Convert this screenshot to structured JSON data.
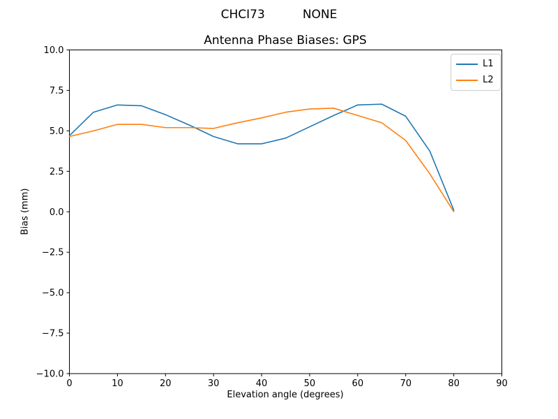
{
  "header": {
    "suptitle": "CHCI73          NONE",
    "chart_title": "Antenna Phase Biases: GPS"
  },
  "chart_data": {
    "type": "line",
    "title": "Antenna Phase Biases: GPS",
    "suptitle": "CHCI73          NONE",
    "xlabel": "Elevation angle (degrees)",
    "ylabel": "Bias (mm)",
    "xlim": [
      0,
      90
    ],
    "ylim": [
      -10,
      10
    ],
    "grid": false,
    "legend_position": "upper right",
    "xticks": [
      0,
      10,
      20,
      30,
      40,
      50,
      60,
      70,
      80,
      90
    ],
    "xtick_labels": [
      "0",
      "10",
      "20",
      "30",
      "40",
      "50",
      "60",
      "70",
      "80",
      "90"
    ],
    "yticks": [
      -10,
      -7.5,
      -5,
      -2.5,
      0,
      2.5,
      5,
      7.5,
      10
    ],
    "ytick_labels": [
      "−10.0",
      "−7.5",
      "−5.0",
      "−2.5",
      "0.0",
      "2.5",
      "5.0",
      "7.5",
      "10.0"
    ],
    "x": [
      0,
      5,
      10,
      15,
      20,
      25,
      30,
      35,
      40,
      45,
      50,
      55,
      60,
      65,
      70,
      75,
      80
    ],
    "series": [
      {
        "name": "L1",
        "color": "#1f77b4",
        "values": [
          4.7,
          6.15,
          6.6,
          6.55,
          6.0,
          5.35,
          4.65,
          4.2,
          4.2,
          4.55,
          5.25,
          5.95,
          6.6,
          6.65,
          5.9,
          3.75,
          0.1
        ]
      },
      {
        "name": "L2",
        "color": "#ff7f0e",
        "values": [
          4.65,
          5.0,
          5.4,
          5.4,
          5.2,
          5.2,
          5.15,
          5.5,
          5.8,
          6.15,
          6.35,
          6.4,
          5.95,
          5.5,
          4.4,
          2.35,
          0.0
        ]
      }
    ]
  }
}
